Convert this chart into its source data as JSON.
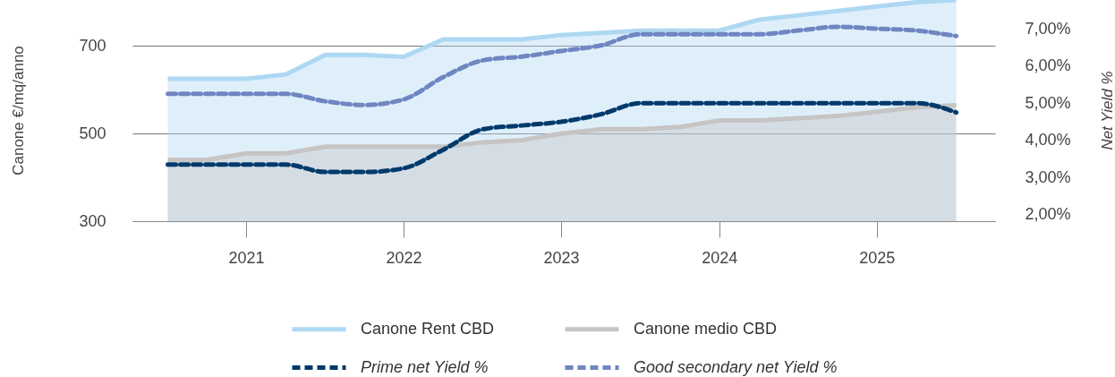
{
  "chart_data": {
    "type": "area",
    "ylabel": "Canone €/mq/anno",
    "y2label": "Net Yield %",
    "x": [
      "2021-01",
      "2021-04",
      "2021-07",
      "2021-10",
      "2022-01",
      "2022-04",
      "2022-07",
      "2022-10",
      "2023-01",
      "2023-04",
      "2023-07",
      "2023-10",
      "2024-01",
      "2024-04",
      "2024-07",
      "2024-10",
      "2025-01",
      "2025-04",
      "2025-07",
      "2025-10",
      "2026-01"
    ],
    "xlim": [
      "2020-10-11",
      "2026-04-01"
    ],
    "xticks": [
      {
        "value": "2021-07",
        "label": "2021"
      },
      {
        "value": "2022-07",
        "label": "2022"
      },
      {
        "value": "2023-07",
        "label": "2023"
      },
      {
        "value": "2024-07",
        "label": "2024"
      },
      {
        "value": "2025-07",
        "label": "2025"
      }
    ],
    "ylim": [
      300,
      805
    ],
    "yticks": [
      300,
      500,
      700
    ],
    "y2lim": [
      1.83,
      7.77
    ],
    "y2ticks": [
      {
        "value": 2,
        "label": "2,00%"
      },
      {
        "value": 3,
        "label": "3,00%"
      },
      {
        "value": 4,
        "label": "4,00%"
      },
      {
        "value": 5,
        "label": "5,00%"
      },
      {
        "value": 6,
        "label": "6,00%"
      },
      {
        "value": 7,
        "label": "7,00%"
      }
    ],
    "grid": "y",
    "legend": "bottom",
    "series": [
      {
        "name": "Canone Rent CBD",
        "color": "#aed8f2",
        "values": [
          625,
          625,
          625,
          635,
          680,
          680,
          675,
          715,
          715,
          715,
          725,
          730,
          735,
          735,
          735,
          760,
          770,
          780,
          790,
          800,
          805
        ]
      },
      {
        "name": "Canone medio CBD",
        "color": "#c6c4c4",
        "values": [
          440,
          440,
          455,
          455,
          470,
          470,
          470,
          470,
          480,
          485,
          500,
          510,
          510,
          515,
          530,
          530,
          535,
          540,
          550,
          560,
          565
        ]
      },
      {
        "name": "Prime net Yield %",
        "type": "line",
        "axis": "y2",
        "line_style": "dashed",
        "color": "#003a6b",
        "values": [
          3.35,
          3.35,
          3.35,
          3.35,
          3.15,
          3.15,
          3.25,
          3.75,
          4.3,
          4.4,
          4.5,
          4.7,
          5.0,
          5.0,
          5.0,
          5.0,
          5.0,
          5.0,
          5.0,
          5.0,
          4.75
        ]
      },
      {
        "name": "Good secondary net Yield %",
        "type": "line",
        "axis": "y2",
        "line_style": "dashed",
        "color": "#6f86c2",
        "values": [
          5.25,
          5.25,
          5.25,
          5.25,
          5.05,
          4.95,
          5.1,
          5.7,
          6.15,
          6.25,
          6.4,
          6.55,
          6.85,
          6.85,
          6.85,
          6.85,
          6.95,
          7.05,
          7.0,
          6.95,
          6.8
        ]
      }
    ]
  }
}
